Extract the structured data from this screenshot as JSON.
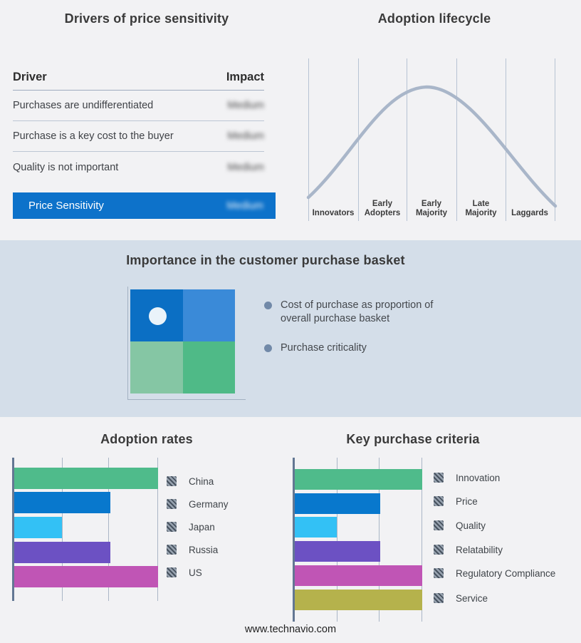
{
  "page": {
    "footer_url": "www.technavio.com"
  },
  "colors": {
    "page_bg": "#f2f2f4",
    "middle_band_bg": "#d4dee9",
    "highlight_blue": "#0d72ca",
    "curve": "#a9b6c9",
    "axis_dark": "#637793",
    "gridline": "#aab6c6"
  },
  "drivers": {
    "title": "Drivers of price sensitivity",
    "columns": {
      "driver": "Driver",
      "impact": "Impact"
    },
    "rows": [
      {
        "driver": "Purchases are undifferentiated",
        "impact": "Medium"
      },
      {
        "driver": "Purchase is a key cost to the buyer",
        "impact": "Medium"
      },
      {
        "driver": "Quality is not important",
        "impact": "Medium"
      }
    ],
    "highlight": {
      "driver": "Price Sensitivity",
      "impact": "Medium",
      "bg": "#0d72ca"
    }
  },
  "lifecycle": {
    "title": "Adoption lifecycle",
    "stages": [
      "Innovators",
      "Early Adopters",
      "Early Majority",
      "Late Majority",
      "Laggards"
    ],
    "curve_color": "#a9b6c9"
  },
  "basket": {
    "title": "Importance in the customer purchase basket",
    "bullets": [
      "Cost of purchase as proportion of overall purchase basket",
      "Purchase criticality"
    ],
    "quadrant_colors": {
      "top_left": "#0b6fc4",
      "top_right": "#3a8ad8",
      "bottom_left": "#85c6a4",
      "bottom_right": "#4fba87"
    },
    "dot_color": "#eaf3fa",
    "band_bg": "#d4dee9"
  },
  "adoption_rates": {
    "title": "Adoption rates",
    "series": [
      {
        "label": "China",
        "value": 100,
        "color": "#4fbb8b"
      },
      {
        "label": "Germany",
        "value": 67,
        "color": "#0878cd"
      },
      {
        "label": "Japan",
        "value": 33,
        "color": "#33c1f5"
      },
      {
        "label": "Russia",
        "value": 67,
        "color": "#6c51c3"
      },
      {
        "label": "US",
        "value": 100,
        "color": "#c055b5"
      }
    ]
  },
  "purchase_criteria": {
    "title": "Key purchase criteria",
    "series": [
      {
        "label": "Innovation",
        "value": 100,
        "color": "#4fbb8b"
      },
      {
        "label": "Price",
        "value": 67,
        "color": "#0878cd"
      },
      {
        "label": "Quality",
        "value": 33,
        "color": "#33c1f5"
      },
      {
        "label": "Relatability",
        "value": 67,
        "color": "#6c51c3"
      },
      {
        "label": "Regulatory Compliance",
        "value": 100,
        "color": "#c055b5"
      },
      {
        "label": "Service",
        "value": 100,
        "color": "#b5b24c"
      }
    ]
  },
  "chart_data": [
    {
      "type": "table",
      "title": "Drivers of price sensitivity",
      "columns": [
        "Driver",
        "Impact"
      ],
      "rows": [
        [
          "Purchases are undifferentiated",
          "Medium"
        ],
        [
          "Purchase is a key cost to the buyer",
          "Medium"
        ],
        [
          "Quality is not important",
          "Medium"
        ],
        [
          "Price Sensitivity",
          "Medium"
        ]
      ]
    },
    {
      "type": "line",
      "title": "Adoption lifecycle",
      "categories": [
        "Innovators",
        "Early Adopters",
        "Early Majority",
        "Late Majority",
        "Laggards"
      ],
      "description": "Bell-shaped adoption curve rising from Innovators, peaking at Early Majority, falling through Laggards",
      "grid": "vertical-only",
      "legend": "none"
    },
    {
      "type": "bar",
      "title": "Adoption rates",
      "orientation": "horizontal",
      "categories": [
        "China",
        "Germany",
        "Japan",
        "Russia",
        "US"
      ],
      "values": [
        100,
        67,
        33,
        67,
        100
      ],
      "xlim": [
        0,
        100
      ],
      "xlabel": "",
      "ylabel": "",
      "legend_position": "right"
    },
    {
      "type": "bar",
      "title": "Key purchase criteria",
      "orientation": "horizontal",
      "categories": [
        "Innovation",
        "Price",
        "Quality",
        "Relatability",
        "Regulatory Compliance",
        "Service"
      ],
      "values": [
        100,
        67,
        33,
        67,
        100,
        100
      ],
      "xlim": [
        0,
        100
      ],
      "xlabel": "",
      "ylabel": "",
      "legend_position": "right"
    }
  ]
}
